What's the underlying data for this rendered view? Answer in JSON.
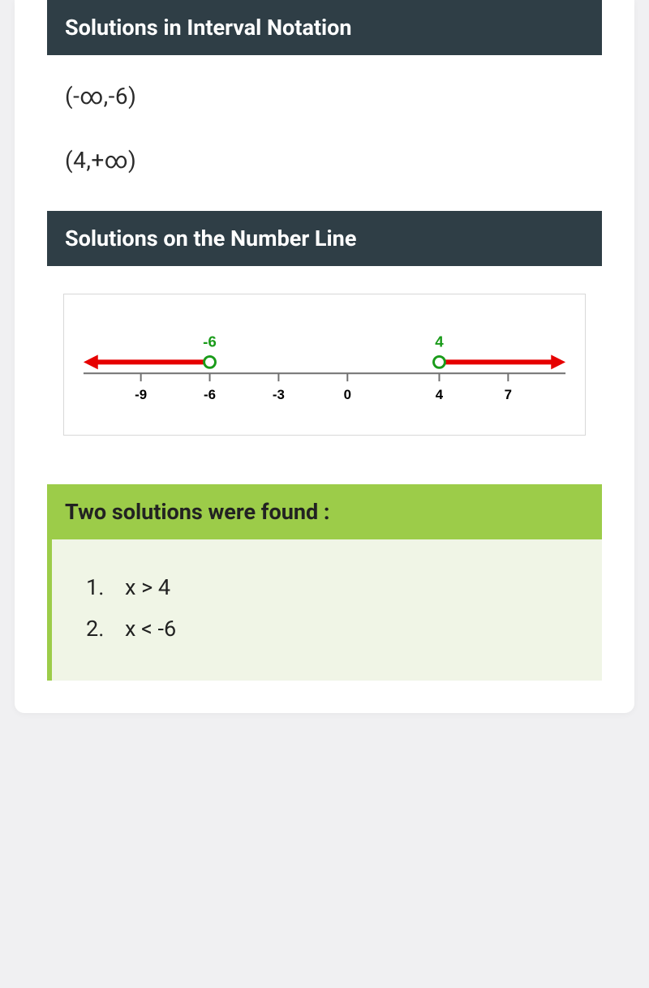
{
  "headers": {
    "interval": "Solutions in Interval Notation",
    "numberline": "Solutions on the Number Line",
    "found": "Two solutions were found :"
  },
  "intervals": [
    "(-∞,-6)",
    "(4,+∞)"
  ],
  "numberline": {
    "axis_min": -11.5,
    "axis_max": 9.5,
    "ticks": [
      -9,
      -6,
      -3,
      0,
      4,
      7
    ],
    "tick_fontsize": 17,
    "tick_weight": "bold",
    "tick_color": "#000000",
    "axis_color": "#707070",
    "axis_width": 2,
    "tick_height": 10,
    "markers": [
      {
        "value": -6,
        "label": "-6",
        "open": true
      },
      {
        "value": 4,
        "label": "4",
        "open": true
      }
    ],
    "marker_radius": 7,
    "marker_fill": "#ffffff",
    "marker_stroke": "#1a9b1a",
    "marker_stroke_width": 3,
    "marker_label_color": "#1a9b1a",
    "marker_label_fontsize": 19,
    "rays": [
      {
        "from": -6,
        "dir": "left"
      },
      {
        "from": 4,
        "dir": "right"
      }
    ],
    "ray_color": "#e60000",
    "ray_width": 6,
    "arrow_size": 14
  },
  "solutions": [
    "x > 4",
    "x < -6"
  ],
  "colors": {
    "header_bg": "#2f3e46",
    "header_fg": "#ffffff",
    "accent_green": "#9ccc49",
    "body_bg": "#ffffff",
    "page_bg": "#f0f0f2",
    "solution_body_bg": "#f0f5e6"
  }
}
